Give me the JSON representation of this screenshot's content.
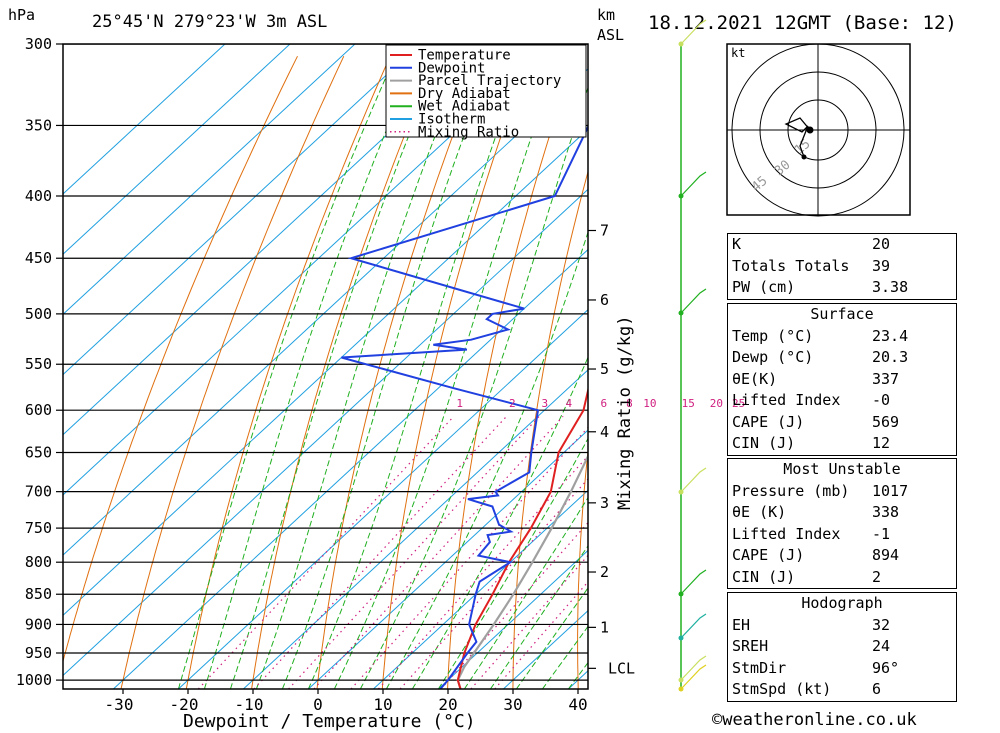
{
  "header": {
    "unit_left": "hPa",
    "location": "25°45'N  279°23'W  3m  ASL",
    "unit_km": "km",
    "unit_asl": "ASL",
    "datetime": "18.12.2021  12GMT  (Base: 12)"
  },
  "legend": [
    {
      "label": "Temperature",
      "color": "#e02020",
      "style": "solid"
    },
    {
      "label": "Dewpoint",
      "color": "#2040e0",
      "style": "solid"
    },
    {
      "label": "Parcel Trajectory",
      "color": "#a0a0a0",
      "style": "solid"
    },
    {
      "label": "Dry Adiabat",
      "color": "#e07010",
      "style": "solid"
    },
    {
      "label": "Wet Adiabat",
      "color": "#20b020",
      "style": "solid"
    },
    {
      "label": "Isotherm",
      "color": "#20a0e0",
      "style": "solid"
    },
    {
      "label": "Mixing Ratio",
      "color": "#d02080",
      "style": "dotted"
    }
  ],
  "chart_data": {
    "type": "line",
    "xlabel": "Dewpoint / Temperature (°C)",
    "y2label": "Mixing Ratio (g/kg)",
    "pressure_levels": [
      300,
      350,
      400,
      450,
      500,
      550,
      600,
      650,
      700,
      750,
      800,
      850,
      900,
      950,
      1000
    ],
    "x_ticks": [
      -30,
      -20,
      -10,
      0,
      10,
      20,
      30,
      40
    ],
    "km_ticks": [
      {
        "label": "7",
        "p": 427
      },
      {
        "label": "6",
        "p": 487
      },
      {
        "label": "5",
        "p": 555
      },
      {
        "label": "4",
        "p": 625
      },
      {
        "label": "3",
        "p": 715
      },
      {
        "label": "2",
        "p": 815
      },
      {
        "label": "1",
        "p": 905
      },
      {
        "label": "LCL",
        "p": 978
      }
    ],
    "mixing_ratio_labels": [
      "1",
      "2",
      "3",
      "4",
      "6",
      "8",
      "10",
      "15",
      "20",
      "25"
    ],
    "mixing_ratio_values": [
      1,
      2,
      3,
      4,
      6,
      8,
      10,
      15,
      20,
      25
    ],
    "series": [
      {
        "name": "Temperature",
        "points": [
          [
            1017,
            23.4
          ],
          [
            1000,
            21.5
          ],
          [
            950,
            18
          ],
          [
            900,
            15
          ],
          [
            850,
            12.6
          ],
          [
            800,
            9.8
          ],
          [
            750,
            7.5
          ],
          [
            700,
            4.5
          ],
          [
            650,
            -0.8
          ],
          [
            600,
            -4
          ],
          [
            550,
            -10
          ],
          [
            500,
            -15
          ],
          [
            450,
            -21
          ],
          [
            400,
            -30
          ],
          [
            350,
            -39
          ],
          [
            300,
            -49
          ]
        ]
      },
      {
        "name": "Dewpoint",
        "points": [
          [
            1017,
            20.3
          ],
          [
            1000,
            20
          ],
          [
            950,
            18.5
          ],
          [
            930,
            18
          ],
          [
            900,
            14
          ],
          [
            850,
            10
          ],
          [
            830,
            8.5
          ],
          [
            800,
            10
          ],
          [
            790,
            4
          ],
          [
            770,
            3.5
          ],
          [
            760,
            2
          ],
          [
            755,
            5
          ],
          [
            745,
            2
          ],
          [
            720,
            -2
          ],
          [
            710,
            -7
          ],
          [
            705,
            -3
          ],
          [
            700,
            -4
          ],
          [
            675,
            -2
          ],
          [
            650,
            -5
          ],
          [
            600,
            -11
          ],
          [
            575,
            -28
          ],
          [
            543,
            -50
          ],
          [
            535,
            -32
          ],
          [
            530,
            -38
          ],
          [
            525,
            -33
          ],
          [
            515,
            -29
          ],
          [
            505,
            -34
          ],
          [
            500,
            -34
          ],
          [
            495,
            -30
          ],
          [
            450,
            -65
          ],
          [
            400,
            -44
          ],
          [
            300,
            -58
          ]
        ]
      },
      {
        "name": "Parcel Trajectory",
        "points": [
          [
            1017,
            23.4
          ],
          [
            1000,
            21.5
          ],
          [
            975,
            20.3
          ],
          [
            950,
            19.5
          ],
          [
            900,
            17.8
          ],
          [
            850,
            15.8
          ],
          [
            800,
            13.4
          ],
          [
            750,
            10.7
          ],
          [
            700,
            7.6
          ],
          [
            650,
            4
          ],
          [
            600,
            0
          ],
          [
            550,
            -5
          ],
          [
            500,
            -12
          ],
          [
            450,
            -20
          ],
          [
            400,
            -28
          ],
          [
            350,
            -38
          ],
          [
            300,
            -48
          ]
        ]
      }
    ]
  },
  "hodograph": {
    "unit": "kt",
    "ring_labels": [
      "15",
      "30",
      "45"
    ]
  },
  "indices": {
    "top": [
      {
        "label": "K",
        "value": "20"
      },
      {
        "label": "Totals Totals",
        "value": "39"
      },
      {
        "label": "PW (cm)",
        "value": "3.38"
      }
    ],
    "surface_title": "Surface",
    "surface": [
      {
        "label": "Temp (°C)",
        "value": "23.4"
      },
      {
        "label": "Dewp (°C)",
        "value": "20.3"
      },
      {
        "label": "θE(K)",
        "value": "337"
      },
      {
        "label": "Lifted Index",
        "value": "-0"
      },
      {
        "label": "CAPE (J)",
        "value": "569"
      },
      {
        "label": "CIN (J)",
        "value": "12"
      }
    ],
    "mu_title": "Most Unstable",
    "mu": [
      {
        "label": "Pressure (mb)",
        "value": "1017"
      },
      {
        "label": "θE (K)",
        "value": "338"
      },
      {
        "label": "Lifted Index",
        "value": "-1"
      },
      {
        "label": "CAPE (J)",
        "value": "894"
      },
      {
        "label": "CIN (J)",
        "value": "2"
      }
    ],
    "hodo_title": "Hodograph",
    "hodo": [
      {
        "label": "EH",
        "value": "32"
      },
      {
        "label": "SREH",
        "value": "24"
      },
      {
        "label": "StmDir",
        "value": "96°"
      },
      {
        "label": "StmSpd (kt)",
        "value": "6"
      }
    ]
  },
  "credit": "©weatheronline.co.uk"
}
